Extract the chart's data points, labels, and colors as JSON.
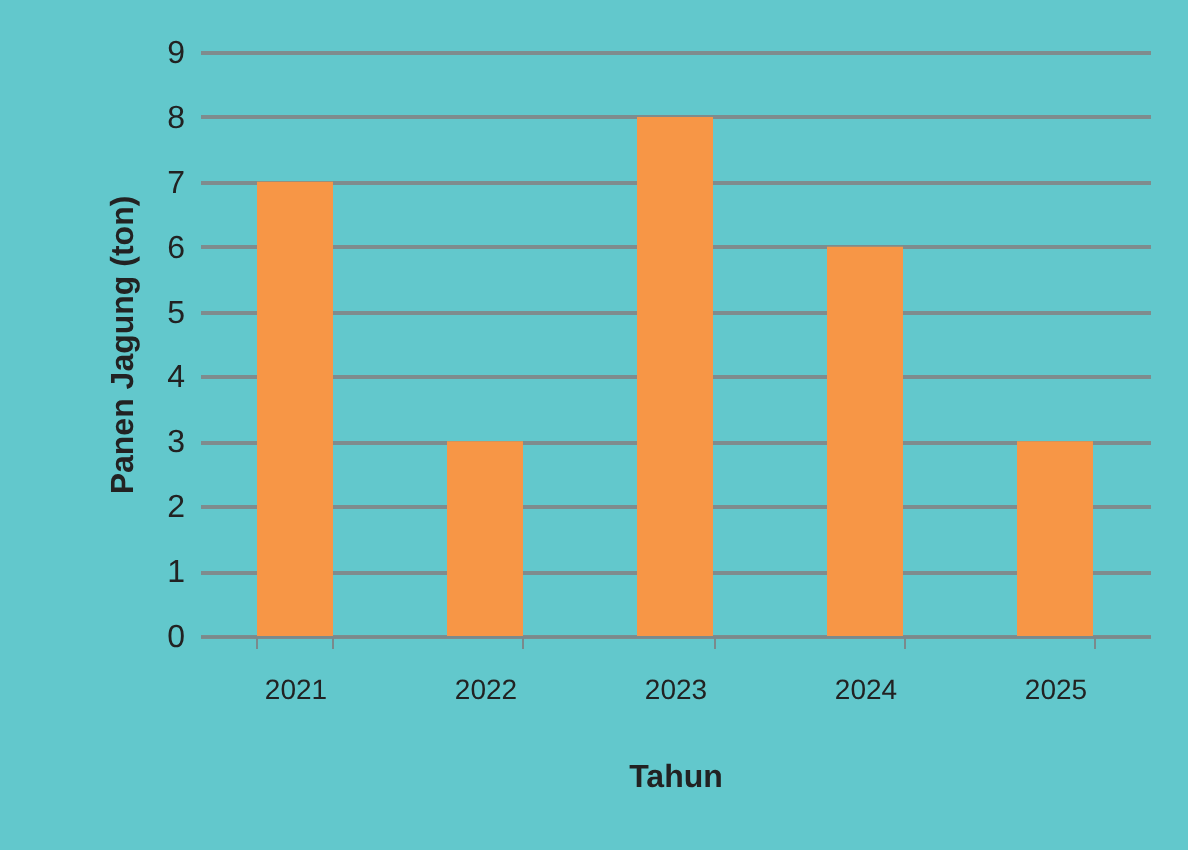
{
  "chart_data": {
    "type": "bar",
    "xlabel": "Tahun",
    "ylabel": "Panen Jagung (ton)",
    "categories": [
      "2021",
      "2022",
      "2023",
      "2024",
      "2025"
    ],
    "values": [
      7,
      3,
      8,
      6,
      3
    ],
    "color": "#f79646",
    "ylim": [
      0,
      9
    ],
    "yticks": [
      0,
      1,
      2,
      3,
      4,
      5,
      6,
      7,
      8,
      9
    ],
    "grid": "y"
  }
}
